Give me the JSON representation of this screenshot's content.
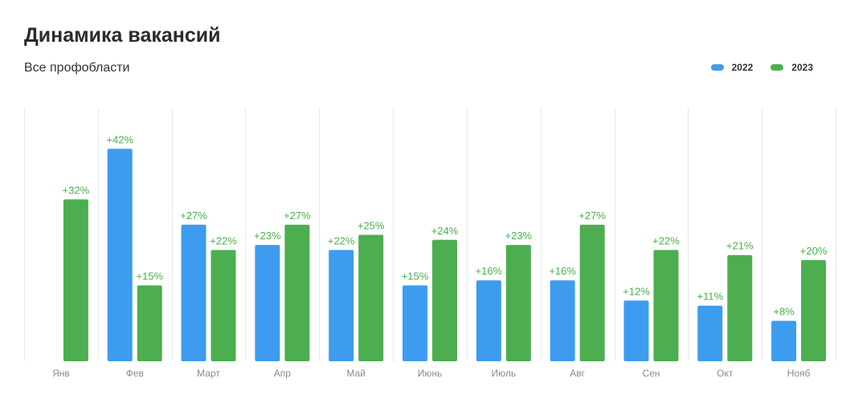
{
  "header": {
    "title": "Динамика вакансий",
    "subtitle": "Все профобласти"
  },
  "colors": {
    "y2022": "#3d9cf0",
    "y2023": "#4cae4f",
    "label2023": "#4cae4f",
    "label2022": "#4cae4f",
    "axis_text": "#8a8a8a",
    "grid": "#e8e8e8"
  },
  "chart_data": {
    "type": "bar",
    "title": "Динамика вакансий",
    "subtitle": "Все профобласти",
    "legend_position": "top-right",
    "grid": "vertical-separators",
    "categories": [
      "Янв",
      "Фев",
      "Март",
      "Апр",
      "Май",
      "Июнь",
      "Июль",
      "Авг",
      "Сен",
      "Окт",
      "Нояб"
    ],
    "ylim": [
      0,
      45
    ],
    "series": [
      {
        "name": "2022",
        "values": [
          null,
          42,
          27,
          23,
          22,
          15,
          16,
          16,
          12,
          11,
          8
        ],
        "labels": [
          "",
          "+42%",
          "+27%",
          "+23%",
          "+22%",
          "+15%",
          "+16%",
          "+16%",
          "+12%",
          "+11%",
          "+8%"
        ]
      },
      {
        "name": "2023",
        "values": [
          32,
          15,
          22,
          27,
          25,
          24,
          23,
          27,
          22,
          21,
          20
        ],
        "labels": [
          "+32%",
          "+15%",
          "+22%",
          "+27%",
          "+25%",
          "+24%",
          "+23%",
          "+27%",
          "+22%",
          "+21%",
          "+20%"
        ]
      }
    ]
  }
}
